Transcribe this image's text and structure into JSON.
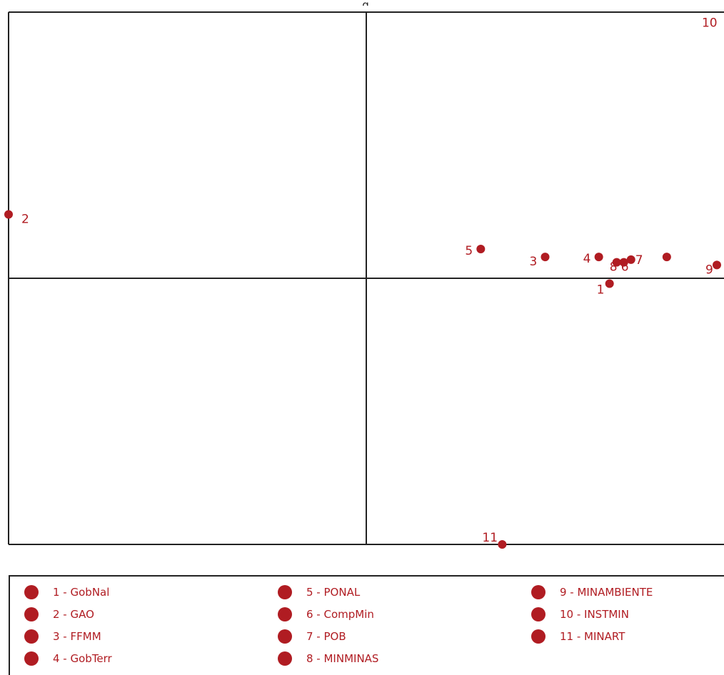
{
  "chart_data": {
    "type": "scatter",
    "title": "",
    "top_label": "g",
    "xlim": [
      -1,
      1
    ],
    "ylim": [
      -1,
      1
    ],
    "colors": {
      "point": "#b01c22",
      "grid": "#222222"
    },
    "points": [
      {
        "id": "1",
        "label": "1",
        "x": 0.68,
        "y": -0.02
      },
      {
        "id": "2",
        "label": "2",
        "x": -1.0,
        "y": 0.24
      },
      {
        "id": "3",
        "label": "3",
        "x": 0.5,
        "y": 0.08
      },
      {
        "id": "4",
        "label": "4",
        "x": 0.65,
        "y": 0.08
      },
      {
        "id": "5",
        "label": "5",
        "x": 0.32,
        "y": 0.11
      },
      {
        "id": "6",
        "label": "6",
        "x": 0.72,
        "y": 0.06
      },
      {
        "id": "7",
        "label": "7",
        "x": 0.74,
        "y": 0.07
      },
      {
        "id": "8",
        "label": "8",
        "x": 0.7,
        "y": 0.06
      },
      {
        "id": "9",
        "label": "9",
        "x": 0.98,
        "y": 0.05
      },
      {
        "id": "10",
        "label": "10",
        "x": 0.97,
        "y": 0.94
      },
      {
        "id": "11",
        "label": "11",
        "x": 0.38,
        "y": -1.0
      },
      {
        "id": "7b",
        "label": "",
        "x": 0.84,
        "y": 0.08
      }
    ],
    "legend": [
      "1 - GobNal",
      "2 - GAO",
      "3 - FFMM",
      "4 - GobTerr",
      "5 - PONAL",
      "6 - CompMin",
      "7 - POB",
      "8 - MINMINAS",
      "9 - MINAMBIENTE",
      "10 - INSTMIN",
      "11 - MINART"
    ]
  }
}
